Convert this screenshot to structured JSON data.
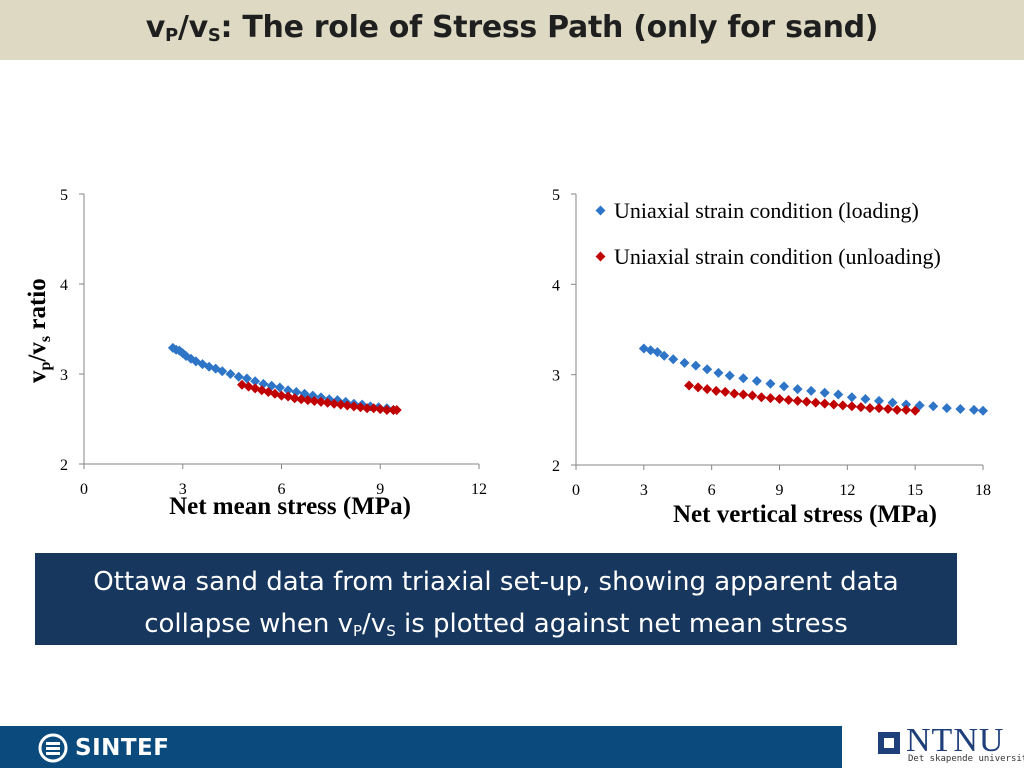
{
  "slide": {
    "title_main": "v",
    "title_sub1": "P",
    "title_mid": "/v",
    "title_sub2": "S",
    "title_rest": ": The role of Stress Path (only for sand)"
  },
  "note": {
    "line1": "Ottawa sand data from triaxial set-up, showing apparent data",
    "line2_a": "collapse when v",
    "line2_sub1": "P",
    "line2_b": "/v",
    "line2_sub2": "S",
    "line2_c": " is plotted against net mean stress"
  },
  "footer": {
    "sintef_label": "SINTEF",
    "ntnu_label": "NTNU",
    "ntnu_tagline": "Det skapende universitet"
  },
  "colors": {
    "loading": "#2e75c7",
    "unloading": "#c00000",
    "title_band": "#ddd9c3",
    "note_box": "#17375e",
    "footer_band": "#0b4a7d"
  },
  "chart_data": [
    {
      "type": "scatter",
      "title": "",
      "ylabel_main": "v",
      "ylabel_sub1": "p",
      "ylabel_mid": "/v",
      "ylabel_sub2": "s",
      "ylabel_rest": " ratio",
      "xlabel": "Net mean stress (MPa)",
      "xlim": [
        0,
        12
      ],
      "ylim": [
        2,
        5
      ],
      "xticks": [
        "0",
        "3",
        "6",
        "9",
        "12"
      ],
      "yticks": [
        "2",
        "3",
        "4",
        "5"
      ],
      "grid": false,
      "series": [
        {
          "color": "#2e75c7",
          "points": [
            [
              2.7,
              3.29
            ],
            [
              2.8,
              3.27
            ],
            [
              2.9,
              3.26
            ],
            [
              3.0,
              3.23
            ],
            [
              3.1,
              3.2
            ],
            [
              3.25,
              3.17
            ],
            [
              3.4,
              3.14
            ],
            [
              3.6,
              3.11
            ],
            [
              3.8,
              3.08
            ],
            [
              4.0,
              3.06
            ],
            [
              4.2,
              3.03
            ],
            [
              4.45,
              3.0
            ],
            [
              4.7,
              2.97
            ],
            [
              4.95,
              2.95
            ],
            [
              5.2,
              2.92
            ],
            [
              5.45,
              2.89
            ],
            [
              5.7,
              2.87
            ],
            [
              5.95,
              2.85
            ],
            [
              6.2,
              2.82
            ],
            [
              6.45,
              2.8
            ],
            [
              6.7,
              2.78
            ],
            [
              6.95,
              2.76
            ],
            [
              7.2,
              2.74
            ],
            [
              7.45,
              2.72
            ],
            [
              7.7,
              2.71
            ],
            [
              7.95,
              2.69
            ],
            [
              8.2,
              2.67
            ],
            [
              8.45,
              2.66
            ],
            [
              8.7,
              2.64
            ],
            [
              8.95,
              2.63
            ],
            [
              9.2,
              2.62
            ],
            [
              9.4,
              2.6
            ]
          ]
        },
        {
          "color": "#c00000",
          "points": [
            [
              4.8,
              2.88
            ],
            [
              5.0,
              2.86
            ],
            [
              5.2,
              2.84
            ],
            [
              5.4,
              2.82
            ],
            [
              5.6,
              2.8
            ],
            [
              5.8,
              2.78
            ],
            [
              6.0,
              2.76
            ],
            [
              6.2,
              2.75
            ],
            [
              6.4,
              2.73
            ],
            [
              6.6,
              2.72
            ],
            [
              6.8,
              2.71
            ],
            [
              7.0,
              2.7
            ],
            [
              7.2,
              2.69
            ],
            [
              7.4,
              2.68
            ],
            [
              7.6,
              2.67
            ],
            [
              7.8,
              2.66
            ],
            [
              8.0,
              2.65
            ],
            [
              8.2,
              2.64
            ],
            [
              8.4,
              2.63
            ],
            [
              8.6,
              2.62
            ],
            [
              8.8,
              2.62
            ],
            [
              9.0,
              2.61
            ],
            [
              9.2,
              2.6
            ],
            [
              9.4,
              2.6
            ],
            [
              9.5,
              2.6
            ]
          ]
        }
      ]
    },
    {
      "type": "scatter",
      "title": "",
      "xlabel": "Net vertical stress (MPa)",
      "xlim": [
        0,
        18
      ],
      "ylim": [
        2,
        5
      ],
      "xticks": [
        "0",
        "3",
        "6",
        "9",
        "12",
        "15",
        "18"
      ],
      "yticks": [
        "2",
        "3",
        "4",
        "5"
      ],
      "grid": false,
      "legend_position": "top-right",
      "series": [
        {
          "name": "Uniaxial strain condition (loading)",
          "color": "#2e75c7",
          "points": [
            [
              3.0,
              3.29
            ],
            [
              3.3,
              3.27
            ],
            [
              3.6,
              3.25
            ],
            [
              3.9,
              3.21
            ],
            [
              4.3,
              3.17
            ],
            [
              4.8,
              3.13
            ],
            [
              5.3,
              3.1
            ],
            [
              5.8,
              3.06
            ],
            [
              6.3,
              3.02
            ],
            [
              6.8,
              2.99
            ],
            [
              7.4,
              2.96
            ],
            [
              8.0,
              2.93
            ],
            [
              8.6,
              2.9
            ],
            [
              9.2,
              2.87
            ],
            [
              9.8,
              2.84
            ],
            [
              10.4,
              2.82
            ],
            [
              11.0,
              2.8
            ],
            [
              11.6,
              2.78
            ],
            [
              12.2,
              2.75
            ],
            [
              12.8,
              2.73
            ],
            [
              13.4,
              2.71
            ],
            [
              14.0,
              2.69
            ],
            [
              14.6,
              2.67
            ],
            [
              15.2,
              2.66
            ],
            [
              15.8,
              2.65
            ],
            [
              16.4,
              2.63
            ],
            [
              17.0,
              2.62
            ],
            [
              17.6,
              2.61
            ],
            [
              18.0,
              2.6
            ]
          ]
        },
        {
          "name": "Uniaxial strain condition (unloading)",
          "color": "#c00000",
          "points": [
            [
              5.0,
              2.88
            ],
            [
              5.4,
              2.86
            ],
            [
              5.8,
              2.84
            ],
            [
              6.2,
              2.82
            ],
            [
              6.6,
              2.81
            ],
            [
              7.0,
              2.79
            ],
            [
              7.4,
              2.78
            ],
            [
              7.8,
              2.77
            ],
            [
              8.2,
              2.75
            ],
            [
              8.6,
              2.74
            ],
            [
              9.0,
              2.73
            ],
            [
              9.4,
              2.72
            ],
            [
              9.8,
              2.71
            ],
            [
              10.2,
              2.7
            ],
            [
              10.6,
              2.69
            ],
            [
              11.0,
              2.68
            ],
            [
              11.4,
              2.67
            ],
            [
              11.8,
              2.66
            ],
            [
              12.2,
              2.65
            ],
            [
              12.6,
              2.64
            ],
            [
              13.0,
              2.63
            ],
            [
              13.4,
              2.63
            ],
            [
              13.8,
              2.62
            ],
            [
              14.2,
              2.61
            ],
            [
              14.6,
              2.61
            ],
            [
              15.0,
              2.6
            ]
          ]
        }
      ]
    }
  ]
}
